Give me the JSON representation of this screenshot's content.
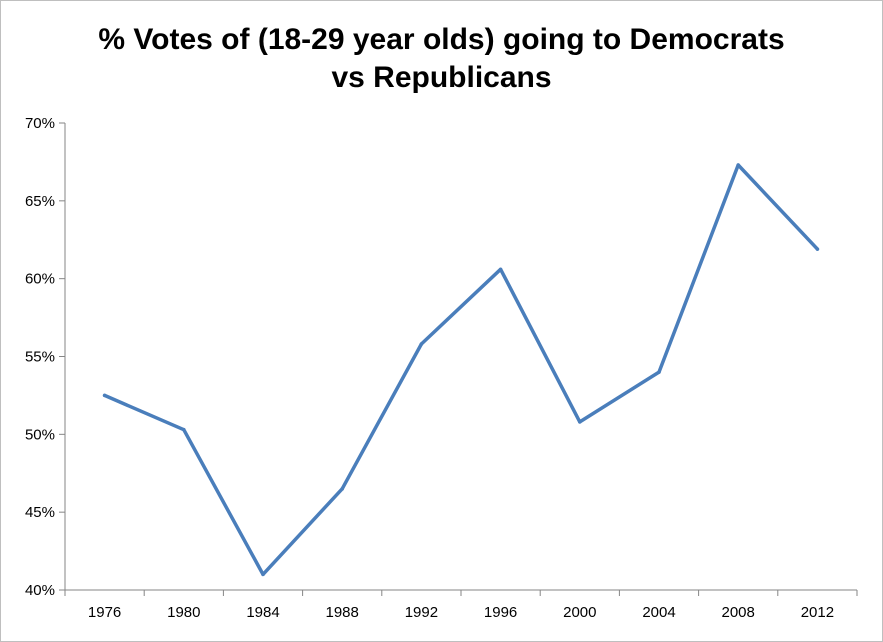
{
  "chart_data": {
    "type": "line",
    "title_lines": [
      "% Votes of (18-29 year olds) going to Democrats",
      "vs Republicans"
    ],
    "xlabel": "",
    "ylabel": "",
    "categories": [
      "1976",
      "1980",
      "1984",
      "1988",
      "1992",
      "1996",
      "2000",
      "2004",
      "2008",
      "2012"
    ],
    "series": [
      {
        "values": [
          52.5,
          50.3,
          41.0,
          46.5,
          55.8,
          60.6,
          50.8,
          54.0,
          67.3,
          61.9
        ]
      }
    ],
    "ylim": [
      40,
      70
    ],
    "yticks": [
      40,
      45,
      50,
      55,
      60,
      65,
      70
    ],
    "ytick_labels": [
      "40%",
      "45%",
      "50%",
      "55%",
      "60%",
      "65%",
      "70%"
    ],
    "grid": false,
    "legend": "none",
    "line_color": "#4a7ebb"
  }
}
